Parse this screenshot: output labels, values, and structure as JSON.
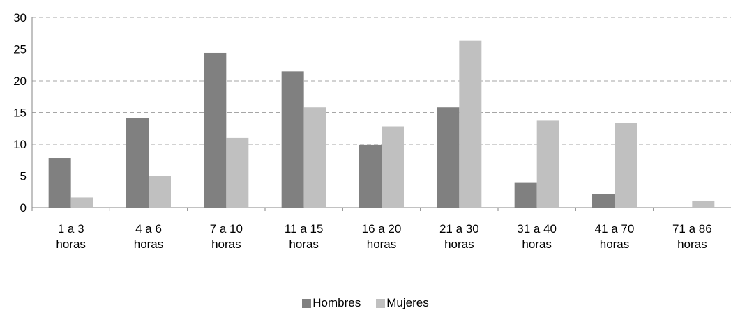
{
  "chart_data": {
    "type": "bar",
    "categories": [
      [
        "1 a 3",
        "horas"
      ],
      [
        "4 a 6",
        "horas"
      ],
      [
        "7 a 10",
        "horas"
      ],
      [
        "11 a 15",
        "horas"
      ],
      [
        "16 a 20",
        "horas"
      ],
      [
        "21 a 30",
        "horas"
      ],
      [
        "31 a 40",
        "horas"
      ],
      [
        "41 a 70",
        "horas"
      ],
      [
        "71 a 86",
        "horas"
      ]
    ],
    "series": [
      {
        "name": "Hombres",
        "color": "#808080",
        "values": [
          7.8,
          14.1,
          24.4,
          21.5,
          9.9,
          15.8,
          4.0,
          2.1,
          0
        ]
      },
      {
        "name": "Mujeres",
        "color": "#c0c0c0",
        "values": [
          1.6,
          5.0,
          11.0,
          15.8,
          12.8,
          26.3,
          13.8,
          13.3,
          1.1
        ]
      }
    ],
    "yticks": [
      "0",
      "5",
      "10",
      "15",
      "20",
      "25",
      "30"
    ],
    "ylim": [
      0,
      30
    ],
    "grid": "horizontal-dashed",
    "legend_position": "bottom-center"
  }
}
